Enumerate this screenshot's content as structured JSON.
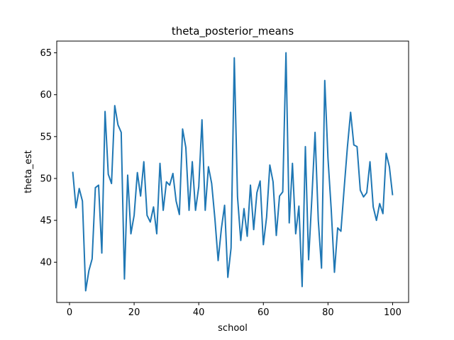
{
  "chart_data": {
    "type": "line",
    "title": "theta_posterior_means",
    "xlabel": "school",
    "ylabel": "theta_est",
    "xlim": [
      -3.95,
      104.95
    ],
    "ylim": [
      35.2,
      66.4
    ],
    "xticks": [
      0,
      20,
      40,
      60,
      80,
      100
    ],
    "yticks": [
      40,
      45,
      50,
      55,
      60,
      65
    ],
    "grid": false,
    "line_color": "#1f77b4",
    "series": [
      {
        "x": [
          1,
          2,
          3,
          4,
          5,
          6,
          7,
          8,
          9,
          10,
          11,
          12,
          13,
          14,
          15,
          16,
          17,
          18,
          19,
          20,
          21,
          22,
          23,
          24,
          25,
          26,
          27,
          28,
          29,
          30,
          31,
          32,
          33,
          34,
          35,
          36,
          37,
          38,
          39,
          40,
          41,
          42,
          43,
          44,
          45,
          46,
          47,
          48,
          49,
          50,
          51,
          52,
          53,
          54,
          55,
          56,
          57,
          58,
          59,
          60,
          61,
          62,
          63,
          64,
          65,
          66,
          67,
          68,
          69,
          70,
          71,
          72,
          73,
          74,
          75,
          76,
          77,
          78,
          79,
          80,
          81,
          82,
          83,
          84,
          85,
          86,
          87,
          88,
          89,
          90,
          91,
          92,
          93,
          94,
          95,
          96,
          97,
          98,
          99,
          100
        ],
        "values": [
          50.8,
          46.5,
          48.8,
          47.3,
          36.6,
          39.0,
          40.4,
          48.9,
          49.2,
          41.1,
          58.0,
          50.5,
          49.4,
          58.7,
          56.4,
          55.5,
          38.0,
          50.4,
          43.4,
          45.6,
          50.7,
          47.9,
          52.0,
          45.6,
          44.8,
          46.6,
          43.4,
          51.8,
          46.2,
          49.6,
          49.2,
          50.6,
          47.3,
          45.7,
          55.9,
          53.7,
          46.2,
          52.0,
          46.2,
          49.0,
          57.0,
          46.2,
          51.4,
          49.4,
          45.2,
          40.2,
          44.0,
          46.8,
          38.2,
          41.7,
          64.4,
          47.8,
          42.6,
          46.4,
          43.1,
          49.2,
          43.9,
          48.3,
          49.7,
          42.1,
          45.4,
          51.6,
          49.6,
          43.2,
          47.9,
          48.4,
          65.0,
          44.7,
          51.8,
          43.4,
          46.7,
          37.1,
          53.8,
          40.3,
          47.6,
          55.5,
          45.0,
          39.3,
          61.7,
          52.4,
          46.3,
          38.8,
          44.1,
          43.7,
          48.8,
          53.7,
          57.9,
          54.0,
          53.8,
          48.6,
          47.8,
          48.3,
          52.0,
          46.6,
          45.0,
          47.0,
          45.8,
          53.0,
          51.4,
          48.0
        ]
      }
    ]
  }
}
